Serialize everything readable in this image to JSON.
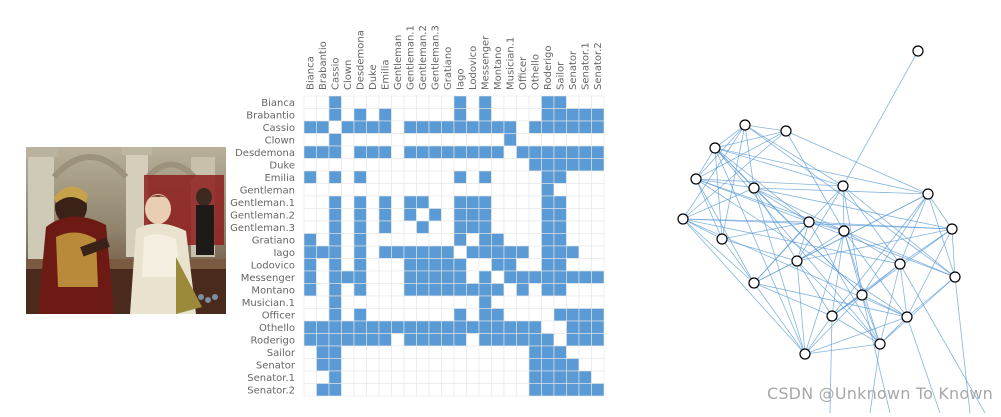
{
  "matrix": {
    "labels": [
      "Bianca",
      "Brabantio",
      "Cassio",
      "Clown",
      "Desdemona",
      "Duke",
      "Emilia",
      "Gentleman",
      "Gentleman.1",
      "Gentleman.2",
      "Gentleman.3",
      "Gratiano",
      "Iago",
      "Lodovico",
      "Messenger",
      "Montano",
      "Musician.1",
      "Officer",
      "Othello",
      "Roderigo",
      "Sailor",
      "Senator",
      "Senator.1",
      "Senator.2"
    ],
    "rows": [
      "001000000000101000011000",
      "001010100000101000011111",
      "110111101111111110111111",
      "001000000000000010000000",
      "111011101111111101111111",
      "000000000000000000111111",
      "101010000000101000011000",
      "000000000000000000010000",
      "001010101100111000011000",
      "001010101010111000011000",
      "001010100100111000011000",
      "101010000000101100011000",
      "111010111111011111011100",
      "101010001111100110011000",
      "101110001111101011111111",
      "101010001111111101011000",
      "001000000000001000000000",
      "001010000000101100001111",
      "111111111111111111100111",
      "111111101111101111110111",
      "011000000000000000111000",
      "011000000000000000111100",
      "001000000000000000111110",
      "011000000000000000111111"
    ],
    "fill_color": "#5b9bd5",
    "grid_color": "#e6e6e6"
  },
  "network": {
    "edge_color": "#5b9bd5",
    "node_fill": "#ffffff",
    "node_stroke": "#000000"
  },
  "watermark": "CSDN @Unknown To Known",
  "painting_description_icon": "othello-painting"
}
